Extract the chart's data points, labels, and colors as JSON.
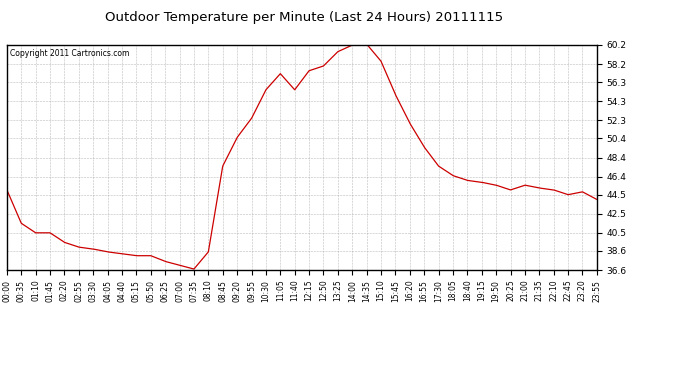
{
  "title": "Outdoor Temperature per Minute (Last 24 Hours) 20111115",
  "copyright_text": "Copyright 2011 Cartronics.com",
  "line_color": "#cc0000",
  "background_color": "#ffffff",
  "grid_color": "#aaaaaa",
  "ylim": [
    36.6,
    60.2
  ],
  "yticks": [
    36.6,
    38.6,
    40.5,
    42.5,
    44.5,
    46.4,
    48.4,
    50.4,
    52.3,
    54.3,
    56.3,
    58.2,
    60.2
  ],
  "xtick_labels": [
    "00:00",
    "00:35",
    "01:10",
    "01:45",
    "02:20",
    "02:55",
    "03:30",
    "04:05",
    "04:40",
    "05:15",
    "05:50",
    "06:25",
    "07:00",
    "07:35",
    "08:10",
    "08:45",
    "09:20",
    "09:55",
    "10:30",
    "11:05",
    "11:40",
    "12:15",
    "12:50",
    "13:25",
    "14:00",
    "14:35",
    "15:10",
    "15:45",
    "16:20",
    "16:55",
    "17:30",
    "18:05",
    "18:40",
    "19:15",
    "19:50",
    "20:25",
    "21:00",
    "21:35",
    "22:10",
    "22:45",
    "23:20",
    "23:55"
  ],
  "key_times": [
    0,
    35,
    70,
    105,
    140,
    175,
    210,
    245,
    280,
    315,
    350,
    385,
    420,
    455,
    490,
    525,
    560,
    595,
    630,
    665,
    700,
    735,
    770,
    805,
    840,
    875,
    910,
    945,
    980,
    1015,
    1050,
    1085,
    1120,
    1155,
    1190,
    1225,
    1260,
    1295,
    1330,
    1365,
    1400,
    1435
  ],
  "key_temps": [
    45.0,
    41.5,
    40.5,
    40.5,
    39.5,
    39.0,
    38.8,
    38.5,
    38.3,
    38.1,
    38.1,
    37.5,
    37.1,
    36.7,
    38.5,
    47.5,
    50.5,
    52.5,
    55.5,
    57.2,
    55.5,
    57.5,
    58.0,
    59.5,
    60.2,
    60.3,
    58.5,
    55.0,
    52.0,
    49.5,
    47.5,
    46.5,
    46.0,
    45.8,
    45.5,
    45.0,
    45.5,
    45.2,
    45.0,
    44.5,
    44.8,
    44.0
  ]
}
